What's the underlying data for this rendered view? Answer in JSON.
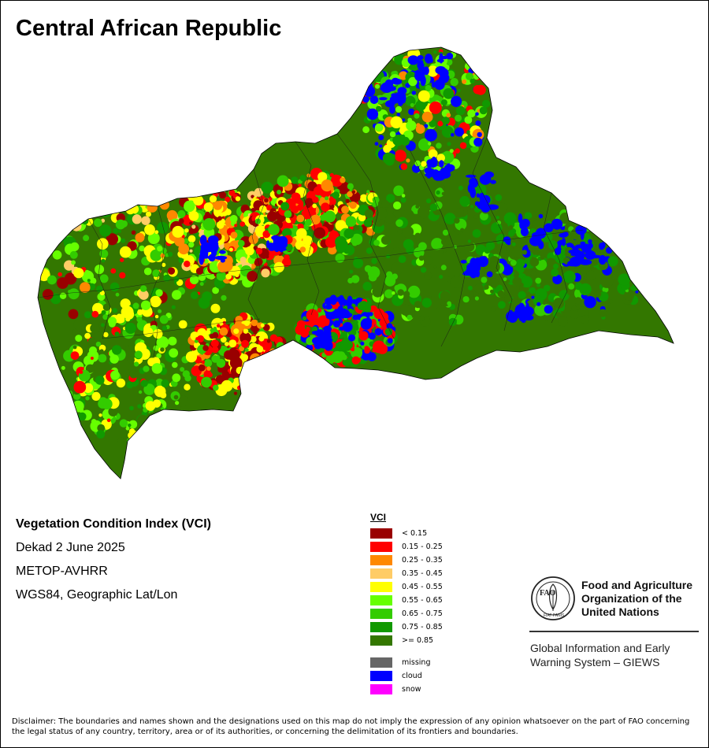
{
  "title": "Central African Republic",
  "info": {
    "index_name": "Vegetation Condition Index (VCI)",
    "period": "Dekad 2 June 2025",
    "sensor": "METOP-AVHRR",
    "projection": "WGS84, Geographic Lat/Lon"
  },
  "legend": {
    "title": "VCI",
    "classes": [
      {
        "label": "< 0.15",
        "color": "#990000"
      },
      {
        "label": "0.15 - 0.25",
        "color": "#ff0000"
      },
      {
        "label": "0.25 - 0.35",
        "color": "#ff8800"
      },
      {
        "label": "0.35 - 0.45",
        "color": "#ffcc66"
      },
      {
        "label": "0.45 - 0.55",
        "color": "#ffff00"
      },
      {
        "label": "0.55 - 0.65",
        "color": "#66ff00"
      },
      {
        "label": "0.65 - 0.75",
        "color": "#33cc00"
      },
      {
        "label": "0.75 - 0.85",
        "color": "#119900"
      },
      {
        "label": ">= 0.85",
        "color": "#337700"
      }
    ],
    "special": [
      {
        "label": "missing",
        "color": "#666666"
      },
      {
        "label": "cloud",
        "color": "#0000ff"
      },
      {
        "label": "snow",
        "color": "#ff00ff"
      }
    ]
  },
  "organization": {
    "logo_text": "FAO",
    "logo_motto": "FIAT PANIS",
    "name_line1": "Food and Agriculture",
    "name_line2": "Organization of the",
    "name_line3": "United Nations",
    "giews_line1": "Global Information and Early",
    "giews_line2": "Warning System – GIEWS"
  },
  "disclaimer": "Disclaimer: The boundaries and names shown and the designations used on this map do not imply the expression of any opinion whatsoever on the part of FAO concerning the legal status of any country, territory, area or of its authorities, or concerning the delimitation of its frontiers and boundaries."
}
